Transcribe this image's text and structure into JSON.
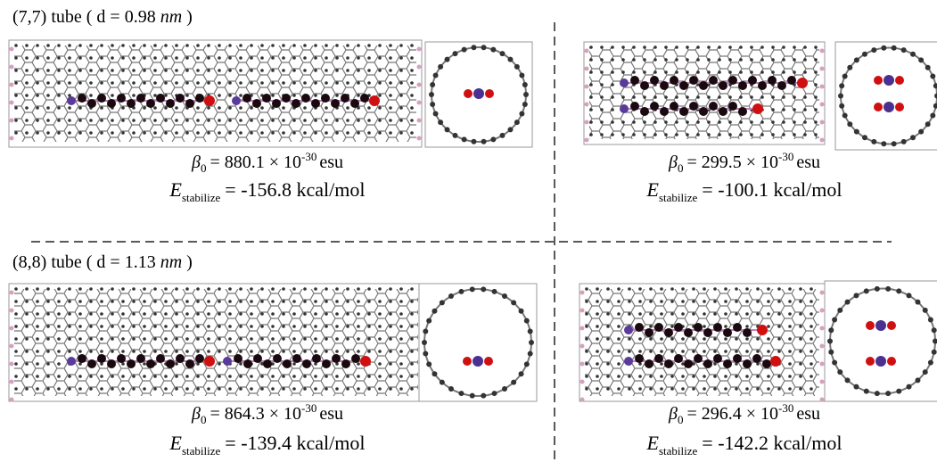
{
  "panels": [
    {
      "tube_label": {
        "prefix": "(7,7) tube ( d = 0.98",
        "unit": "nm",
        "suffix": ")"
      },
      "beta": {
        "symbol": "β",
        "sub": "0",
        "text": "= 880.1 × 10",
        "sup": "-30",
        "unit": "esu"
      },
      "energy": {
        "symbol": "E",
        "sub": "stabilize",
        "text": "= -156.8 kcal/mol"
      }
    },
    {
      "beta": {
        "symbol": "β",
        "sub": "0",
        "text": "= 299.5 × 10",
        "sup": "-30",
        "unit": "esu"
      },
      "energy": {
        "symbol": "E",
        "sub": "stabilize",
        "text": "= -100.1 kcal/mol"
      }
    },
    {
      "tube_label": {
        "prefix": "(8,8) tube ( d = 1.13",
        "unit": "nm",
        "suffix": ")"
      },
      "beta": {
        "symbol": "β",
        "sub": "0",
        "text": "= 864.3 × 10",
        "sup": "-30",
        "unit": "esu"
      },
      "energy": {
        "symbol": "E",
        "sub": "stabilize",
        "text": "=  -139.4 kcal/mol"
      }
    },
    {
      "beta": {
        "symbol": "β",
        "sub": "0",
        "text": "= 296.4 × 10",
        "sup": "-30",
        "unit": "esu"
      },
      "energy": {
        "symbol": "E",
        "sub": "stabilize",
        "text": "= -142.2 kcal/mol"
      }
    }
  ]
}
